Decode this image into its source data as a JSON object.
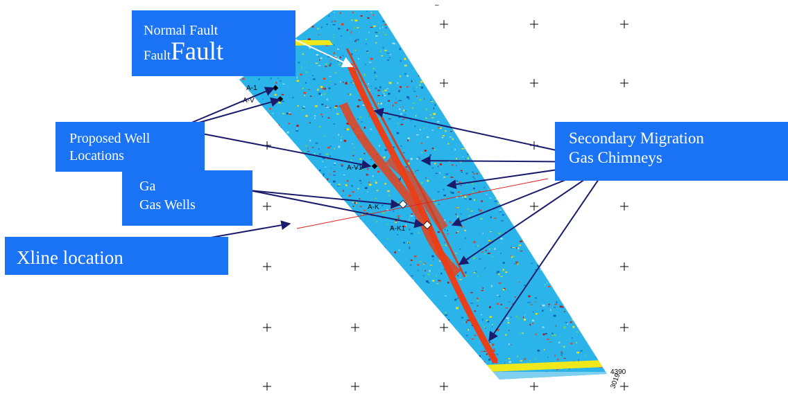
{
  "callouts": {
    "normal_fault": {
      "line1": "Normal Fault",
      "line2_small": "Fault",
      "line2_big": "Fault"
    },
    "proposed_wells": {
      "line1": "Proposed Well",
      "line2": "Locations"
    },
    "gas_wells": {
      "line1": "Ga",
      "line2": "Gas Wells"
    },
    "xline": {
      "label": "Xline location"
    },
    "gas_chimneys": {
      "line1": "Secondary Migration",
      "line2": "Gas Chimneys"
    }
  },
  "map_labels": {
    "corner_inline": "4390",
    "corner_xline": "3019",
    "top_tick": "–",
    "wells": [
      "A-1",
      "A-V",
      "A-V1",
      "A-K",
      "A-K1"
    ]
  },
  "colors": {
    "background_blue": "#2ab4ea",
    "callout_blue": "#1a73f5",
    "chimney_red": "#e8401a",
    "arrow_navy": "#1b1b6b",
    "border_yellow": "#f0e81a"
  }
}
